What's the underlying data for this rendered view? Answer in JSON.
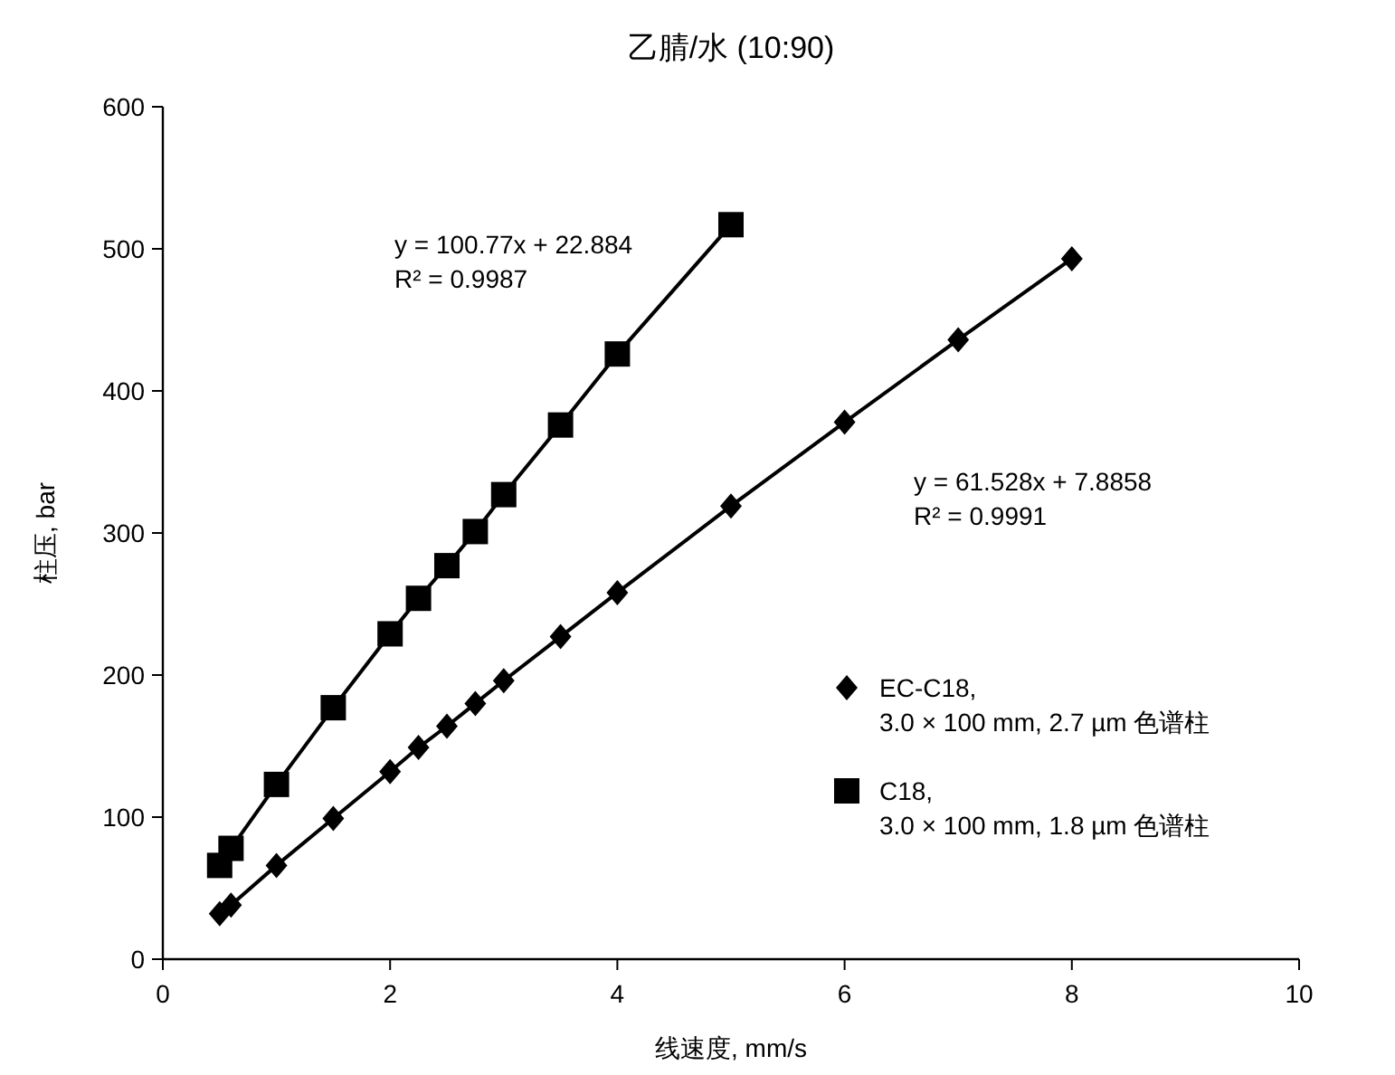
{
  "chart_data": {
    "type": "line",
    "title": "乙腈/水 (10:90)",
    "xlabel": "线速度, mm/s",
    "ylabel": "柱压, bar",
    "xlim": [
      0,
      10
    ],
    "xticks": [
      0,
      2,
      4,
      6,
      8,
      10
    ],
    "ylim": [
      0,
      600
    ],
    "yticks": [
      0,
      100,
      200,
      300,
      400,
      500,
      600
    ],
    "grid": false,
    "legend": "bottom right",
    "line_style": "solid",
    "series": [
      {
        "name": "EC-C18, 3.0 × 100 mm, 2.7 µm 色谱柱",
        "color": "#000000",
        "marker": "diamond",
        "x": [
          0.5,
          0.6,
          1,
          1.5,
          2,
          2.25,
          2.5,
          2.75,
          3,
          3.5,
          4,
          5,
          6,
          7,
          8
        ],
        "values": [
          32,
          38,
          66,
          99,
          132,
          149,
          164,
          180,
          196,
          227,
          258,
          319,
          378,
          436,
          493
        ]
      },
      {
        "name": "C18, 3.0 × 100 mm, 1.8 µm 色谱柱",
        "color": "#000000",
        "marker": "square",
        "x": [
          0.5,
          0.6,
          1,
          1.5,
          2,
          2.25,
          2.5,
          2.75,
          3,
          3.5,
          4,
          5
        ],
        "values": [
          66,
          78,
          123,
          177,
          229,
          254,
          277,
          301,
          327,
          376,
          426,
          517
        ]
      }
    ],
    "annotations": [
      "y = 100.77x + 22.884",
      "R² = 0.9987",
      "y = 61.528x + 7.8858",
      "R² = 0.9991"
    ]
  }
}
